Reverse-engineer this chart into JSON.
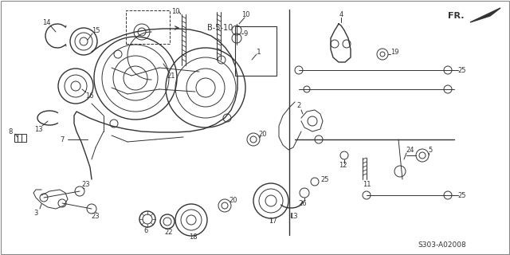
{
  "background_color": "#ffffff",
  "diagram_color": "#333333",
  "reference_code": "S303-A02008",
  "direction_label": "FR.",
  "cross_ref": "B-5-10",
  "fig_width": 6.4,
  "fig_height": 3.2,
  "dpi": 100
}
